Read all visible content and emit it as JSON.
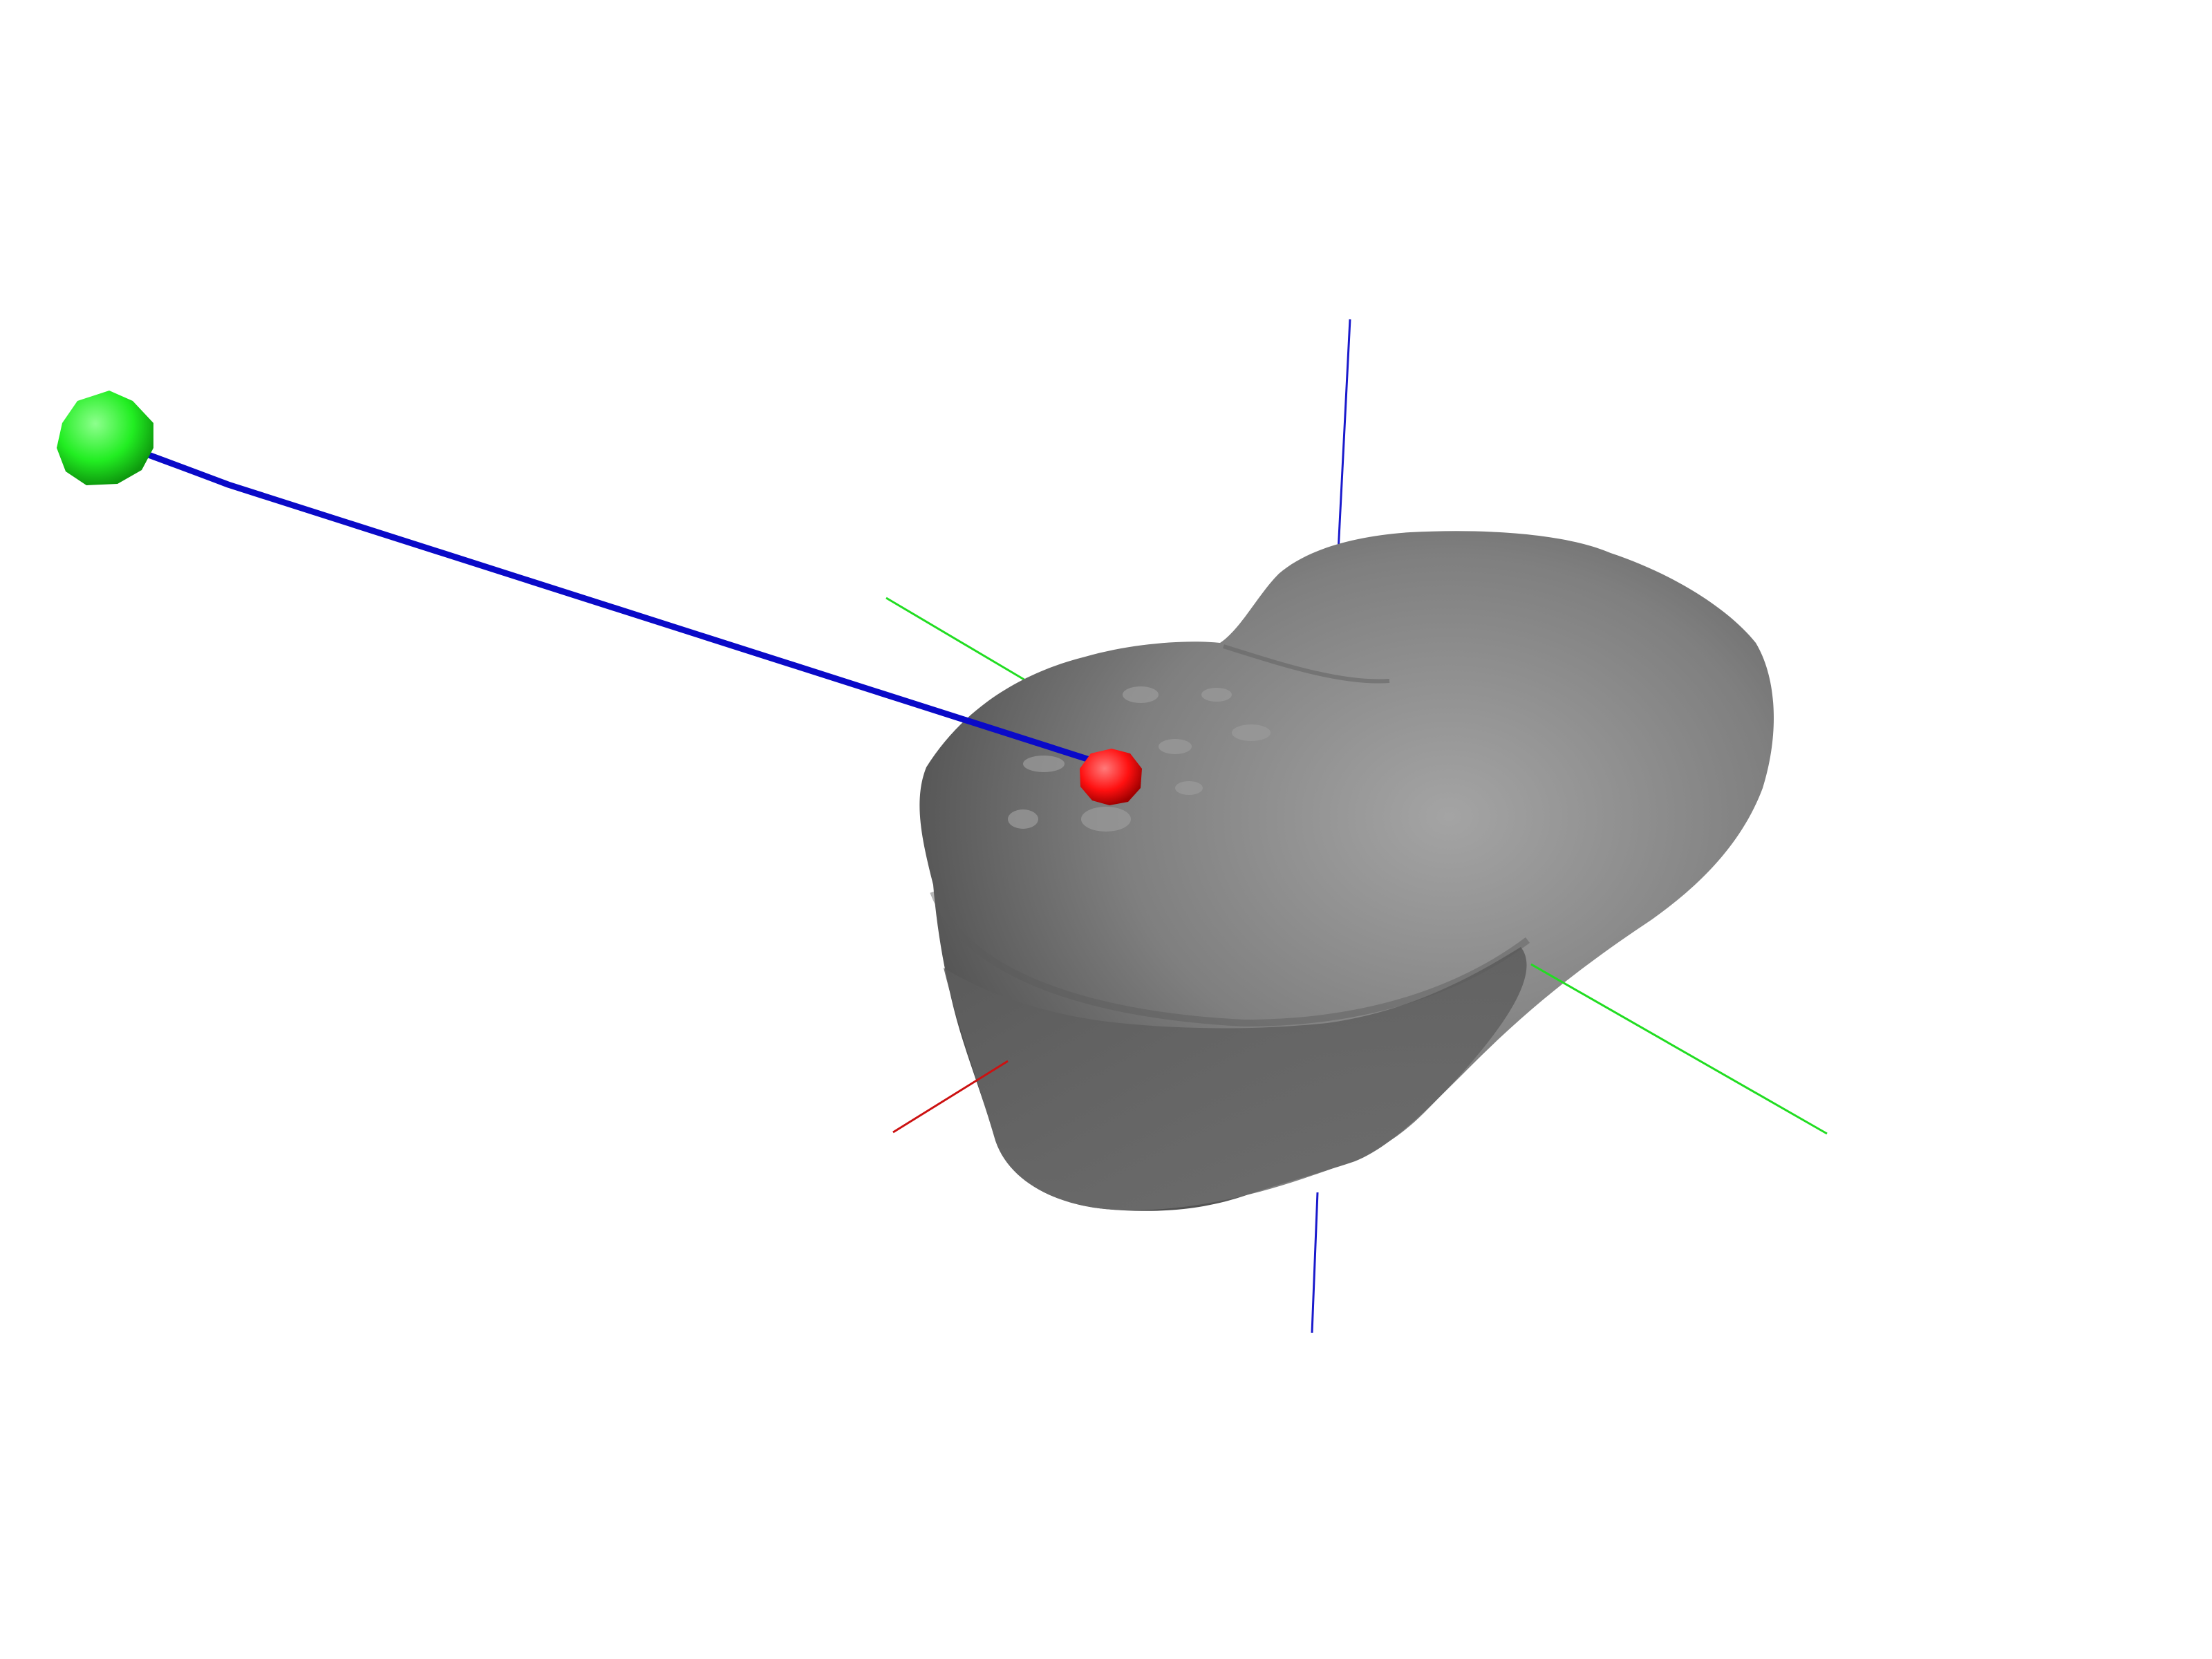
{
  "scene": {
    "background": "#ffffff",
    "body": {
      "kind": "bilobed-asteroid-shape-model",
      "fill": "#7f7f7f",
      "highlight": "#a4a4a4",
      "shadow": "#4a4a4a"
    },
    "axes": {
      "x": {
        "color": "#cc1111",
        "icon": "x-axis-line"
      },
      "y": {
        "color": "#22dd22",
        "icon": "y-axis-line"
      },
      "z": {
        "color": "#1a1acc",
        "icon": "z-axis-line"
      }
    },
    "markers": {
      "observer": {
        "color": "#22ee22",
        "icon": "green-sphere-marker"
      },
      "surface_point": {
        "color": "#ff1010",
        "icon": "red-sphere-marker"
      },
      "ray": {
        "color": "#0a0ac8",
        "icon": "line-of-sight-ray"
      }
    }
  }
}
